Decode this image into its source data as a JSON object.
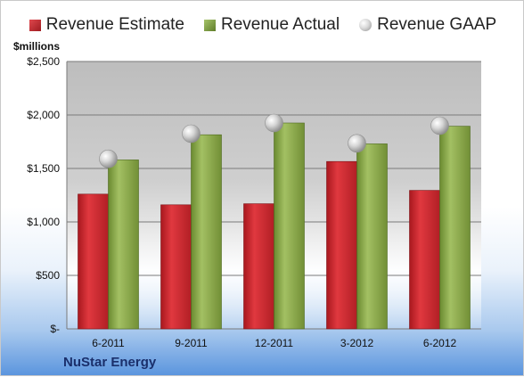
{
  "company": "NuStar Energy",
  "unit_label": "$millions",
  "legend": [
    {
      "label": "Revenue Estimate",
      "color": "#c0272d",
      "kind": "box"
    },
    {
      "label": "Revenue Actual",
      "color": "#7f9f3f",
      "kind": "box"
    },
    {
      "label": "Revenue GAAP",
      "color": "#bfbfbf",
      "kind": "dot"
    }
  ],
  "chart_data": {
    "type": "bar",
    "categories": [
      "6-2011",
      "9-2011",
      "12-2011",
      "3-2012",
      "6-2012"
    ],
    "series": [
      {
        "name": "Revenue Estimate",
        "values": [
          1260,
          1160,
          1170,
          1565,
          1295
        ],
        "color": "#c0272d"
      },
      {
        "name": "Revenue Actual",
        "values": [
          1580,
          1815,
          1925,
          1730,
          1895
        ],
        "color": "#7f9f3f"
      }
    ],
    "points": [
      {
        "name": "Revenue GAAP",
        "values": [
          1590,
          1825,
          1925,
          1735,
          1900
        ],
        "color": "#bfbfbf"
      }
    ],
    "yticks": [
      0,
      500,
      1000,
      1500,
      2000,
      2500
    ],
    "ytick_labels": [
      "$-",
      "$500",
      "$1,000",
      "$1,500",
      "$2,000",
      "$2,500"
    ],
    "ylim": [
      0,
      2500
    ],
    "grid": true,
    "legend_position": "top"
  }
}
